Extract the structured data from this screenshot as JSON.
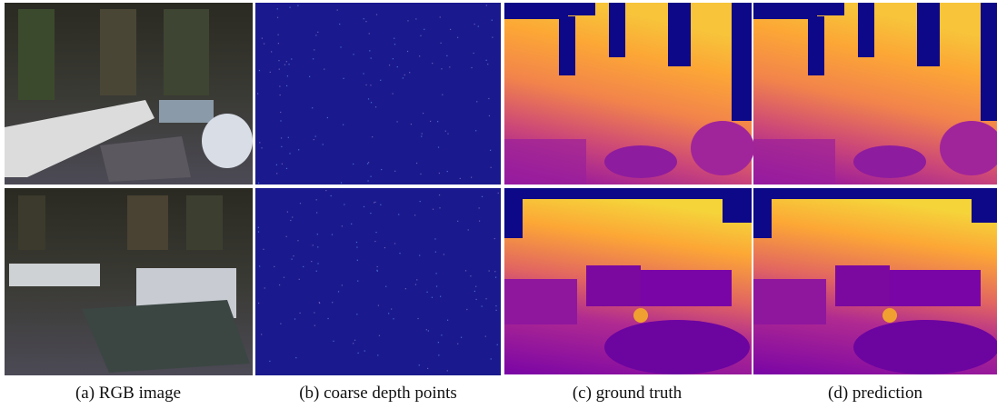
{
  "figure": {
    "captions": [
      "(a) RGB image",
      "(b) coarse depth points",
      "(c) ground truth",
      "(d) prediction"
    ]
  }
}
